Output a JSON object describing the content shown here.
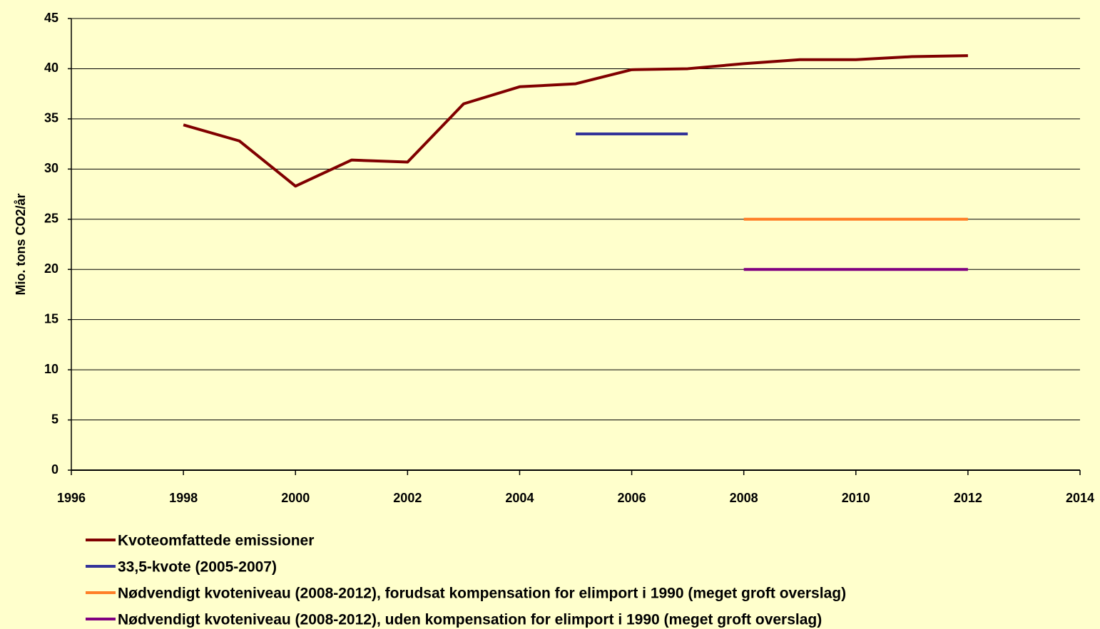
{
  "chart_data": {
    "type": "line",
    "y_label": "Mio. tons CO2/år",
    "x": [
      1998,
      1999,
      2000,
      2001,
      2002,
      2003,
      2004,
      2005,
      2006,
      2007,
      2008,
      2009,
      2010,
      2011,
      2012
    ],
    "series": [
      {
        "name": "Kvoteomfattede emissioner",
        "color": "#800000",
        "values": [
          34.4,
          32.8,
          28.3,
          30.9,
          30.7,
          36.5,
          38.2,
          38.5,
          39.9,
          40.0,
          40.5,
          40.9,
          40.9,
          41.2,
          41.3
        ]
      },
      {
        "name": "33,5-kvote (2005-2007)",
        "color": "#333399",
        "values": [
          null,
          null,
          null,
          null,
          null,
          null,
          null,
          33.5,
          33.5,
          33.5,
          null,
          null,
          null,
          null,
          null
        ]
      },
      {
        "name": "Nødvendigt kvoteniveau (2008-2012), forudsat kompensation for elimport i 1990 (meget groft overslag)",
        "color": "#ff7f27",
        "values": [
          null,
          null,
          null,
          null,
          null,
          null,
          null,
          null,
          null,
          null,
          25,
          25,
          25,
          25,
          25
        ]
      },
      {
        "name": "Nødvendigt kvoteniveau (2008-2012), uden kompensation for elimport i 1990 (meget groft overslag)",
        "color": "#800080",
        "values": [
          null,
          null,
          null,
          null,
          null,
          null,
          null,
          null,
          null,
          null,
          20,
          20,
          20,
          20,
          20
        ]
      }
    ],
    "xlim": [
      1996,
      2014
    ],
    "xticks": [
      1996,
      1998,
      2000,
      2002,
      2004,
      2006,
      2008,
      2010,
      2012,
      2014
    ],
    "ylim": [
      0,
      45
    ],
    "yticks": [
      0,
      5,
      10,
      15,
      20,
      25,
      30,
      35,
      40,
      45
    ],
    "grid": true,
    "legend": "bottom-left"
  }
}
